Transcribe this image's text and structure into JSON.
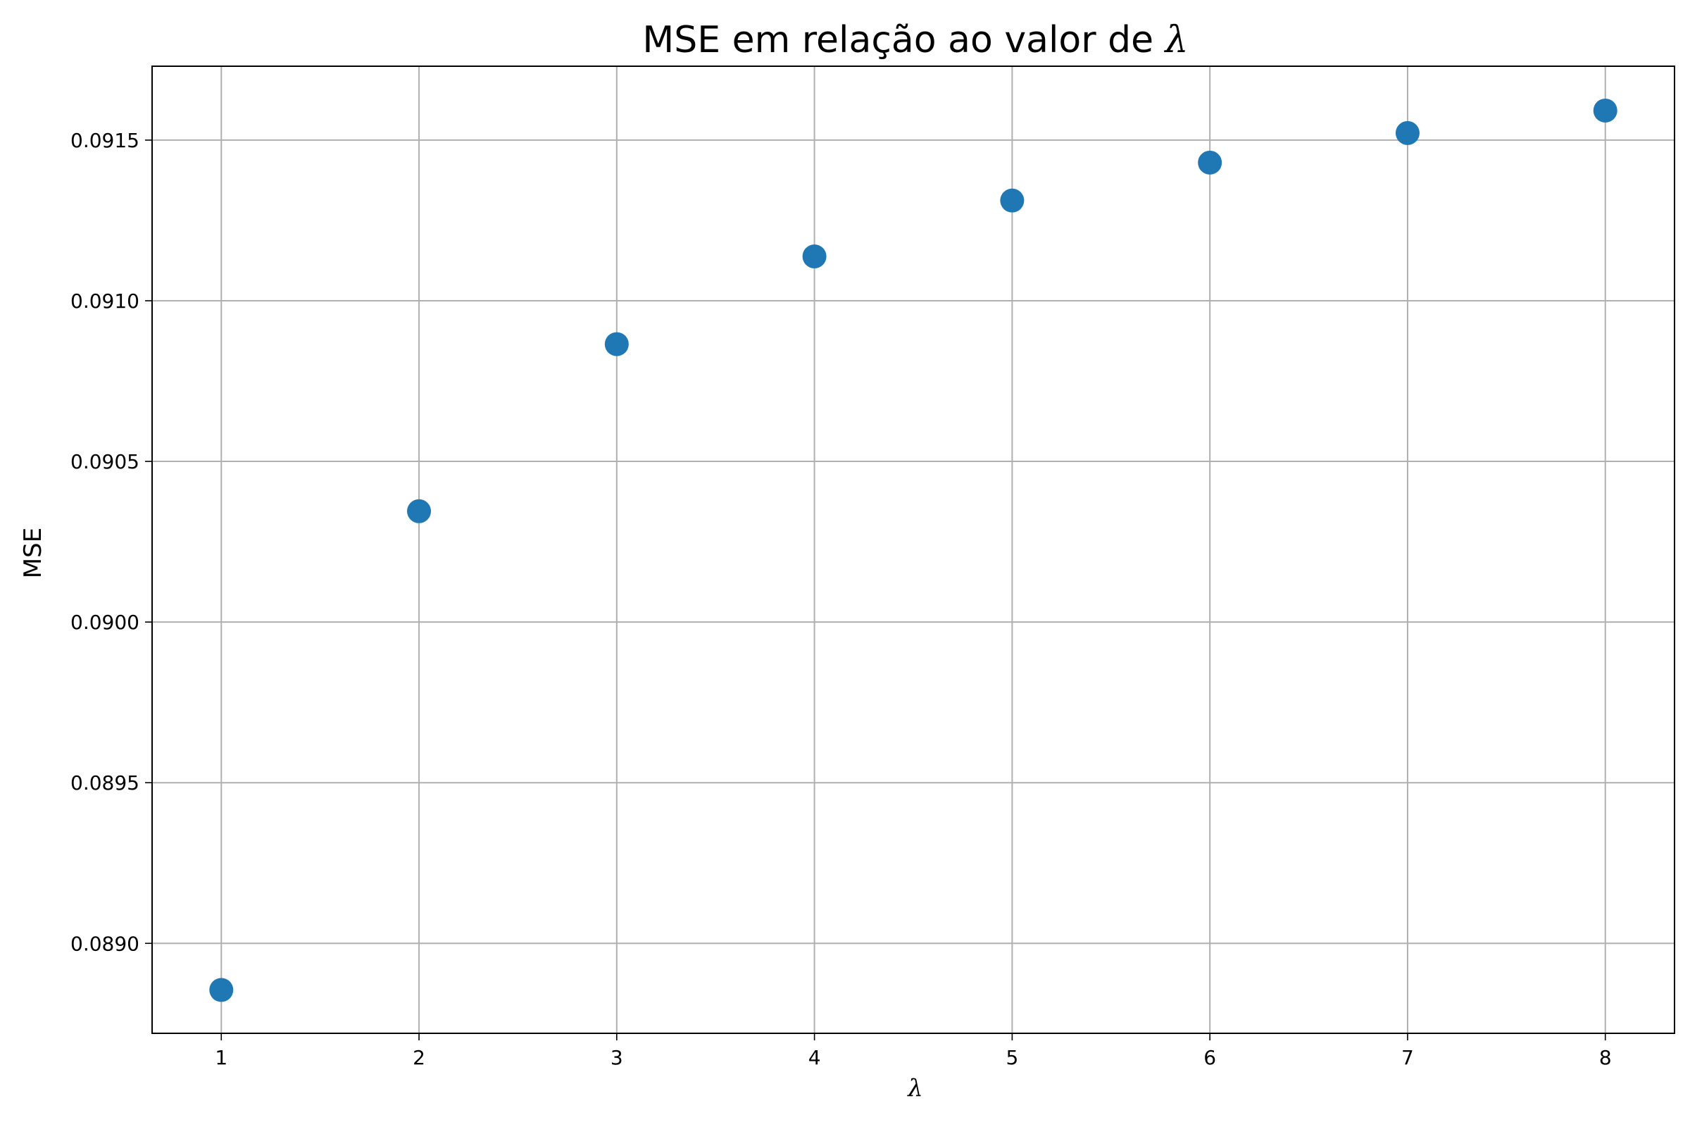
{
  "chart_data": {
    "type": "scatter",
    "title": "MSE em relação ao valor de ",
    "title_symbol": "λ",
    "xlabel": "λ",
    "ylabel": "MSE",
    "x": [
      1,
      2,
      3,
      4,
      5,
      6,
      7,
      8
    ],
    "y": [
      0.088855,
      0.090345,
      0.090865,
      0.091138,
      0.091312,
      0.09143,
      0.091522,
      0.091592
    ],
    "xlim": [
      0.65,
      8.35
    ],
    "ylim": [
      0.08872,
      0.09173
    ],
    "x_ticks": [
      1,
      2,
      3,
      4,
      5,
      6,
      7,
      8
    ],
    "x_tick_labels": [
      "1",
      "2",
      "3",
      "4",
      "5",
      "6",
      "7",
      "8"
    ],
    "y_ticks": [
      0.089,
      0.0895,
      0.09,
      0.0905,
      0.091,
      0.0915
    ],
    "y_tick_labels": [
      "0.0890",
      "0.0895",
      "0.0900",
      "0.0905",
      "0.0910",
      "0.0915"
    ],
    "grid": true,
    "marker_color": "#1f77b4"
  }
}
